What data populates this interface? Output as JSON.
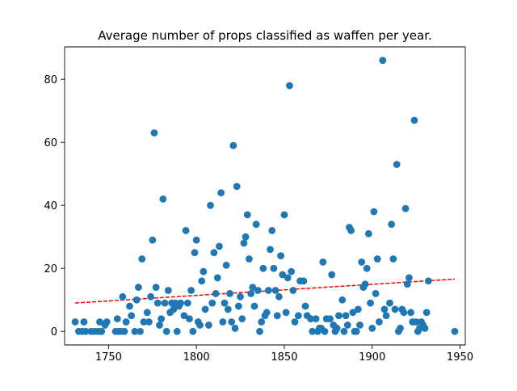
{
  "chart_data": {
    "type": "scatter",
    "title": "Average number of props classified as waffen per year.",
    "xlabel": "",
    "ylabel": "",
    "xlim": [
      1725,
      1953
    ],
    "ylim": [
      -4.3,
      90.3
    ],
    "xticks": [
      1750,
      1800,
      1850,
      1900,
      1950
    ],
    "yticks": [
      0,
      20,
      40,
      60,
      80
    ],
    "grid": false,
    "legend": "none",
    "marker_color": "#1f77b4",
    "trendline_color": "#ff0000",
    "points": [
      [
        1731,
        3
      ],
      [
        1733,
        0
      ],
      [
        1735,
        0
      ],
      [
        1736,
        3
      ],
      [
        1737,
        0
      ],
      [
        1740,
        0
      ],
      [
        1742,
        0
      ],
      [
        1744,
        0
      ],
      [
        1745,
        3
      ],
      [
        1746,
        0
      ],
      [
        1748,
        2
      ],
      [
        1749,
        3
      ],
      [
        1754,
        0
      ],
      [
        1755,
        4
      ],
      [
        1756,
        0
      ],
      [
        1757,
        0
      ],
      [
        1758,
        11
      ],
      [
        1759,
        0
      ],
      [
        1760,
        3
      ],
      [
        1762,
        8
      ],
      [
        1763,
        5
      ],
      [
        1765,
        0
      ],
      [
        1766,
        10
      ],
      [
        1767,
        14
      ],
      [
        1768,
        0
      ],
      [
        1769,
        23
      ],
      [
        1770,
        3
      ],
      [
        1772,
        6
      ],
      [
        1773,
        3
      ],
      [
        1774,
        11
      ],
      [
        1775,
        29
      ],
      [
        1776,
        63
      ],
      [
        1777,
        14
      ],
      [
        1778,
        9
      ],
      [
        1779,
        2
      ],
      [
        1780,
        4
      ],
      [
        1781,
        42
      ],
      [
        1782,
        9
      ],
      [
        1783,
        0
      ],
      [
        1784,
        13
      ],
      [
        1785,
        6
      ],
      [
        1786,
        9
      ],
      [
        1787,
        7
      ],
      [
        1788,
        9
      ],
      [
        1789,
        0
      ],
      [
        1790,
        8
      ],
      [
        1791,
        9
      ],
      [
        1793,
        5
      ],
      [
        1794,
        32
      ],
      [
        1795,
        9
      ],
      [
        1796,
        4
      ],
      [
        1797,
        13
      ],
      [
        1798,
        0
      ],
      [
        1799,
        25
      ],
      [
        1800,
        29
      ],
      [
        1801,
        3
      ],
      [
        1802,
        2
      ],
      [
        1803,
        16
      ],
      [
        1804,
        19
      ],
      [
        1805,
        7
      ],
      [
        1807,
        2
      ],
      [
        1808,
        40
      ],
      [
        1809,
        9
      ],
      [
        1810,
        25
      ],
      [
        1811,
        12
      ],
      [
        1812,
        17
      ],
      [
        1813,
        27
      ],
      [
        1814,
        44
      ],
      [
        1815,
        3
      ],
      [
        1816,
        9
      ],
      [
        1817,
        21
      ],
      [
        1818,
        7
      ],
      [
        1819,
        12
      ],
      [
        1820,
        3
      ],
      [
        1821,
        59
      ],
      [
        1822,
        1
      ],
      [
        1823,
        46
      ],
      [
        1824,
        8
      ],
      [
        1825,
        11
      ],
      [
        1826,
        4
      ],
      [
        1827,
        28
      ],
      [
        1828,
        30
      ],
      [
        1829,
        37
      ],
      [
        1830,
        23
      ],
      [
        1831,
        12
      ],
      [
        1832,
        14
      ],
      [
        1833,
        8
      ],
      [
        1834,
        34
      ],
      [
        1835,
        13
      ],
      [
        1836,
        0
      ],
      [
        1837,
        3
      ],
      [
        1838,
        20
      ],
      [
        1839,
        5
      ],
      [
        1840,
        6
      ],
      [
        1841,
        13
      ],
      [
        1842,
        26
      ],
      [
        1843,
        32
      ],
      [
        1844,
        20
      ],
      [
        1845,
        13
      ],
      [
        1846,
        5
      ],
      [
        1847,
        11
      ],
      [
        1848,
        24
      ],
      [
        1849,
        18
      ],
      [
        1850,
        37
      ],
      [
        1851,
        6
      ],
      [
        1852,
        17
      ],
      [
        1853,
        78
      ],
      [
        1854,
        19
      ],
      [
        1855,
        13
      ],
      [
        1856,
        3
      ],
      [
        1858,
        5
      ],
      [
        1859,
        16
      ],
      [
        1861,
        16
      ],
      [
        1862,
        8
      ],
      [
        1863,
        5
      ],
      [
        1865,
        4
      ],
      [
        1866,
        0
      ],
      [
        1868,
        4
      ],
      [
        1869,
        0
      ],
      [
        1870,
        1
      ],
      [
        1871,
        1
      ],
      [
        1872,
        22
      ],
      [
        1873,
        0
      ],
      [
        1874,
        4
      ],
      [
        1876,
        4
      ],
      [
        1877,
        18
      ],
      [
        1878,
        2
      ],
      [
        1879,
        0
      ],
      [
        1880,
        1
      ],
      [
        1881,
        5
      ],
      [
        1883,
        10
      ],
      [
        1884,
        0
      ],
      [
        1885,
        5
      ],
      [
        1886,
        2
      ],
      [
        1887,
        33
      ],
      [
        1888,
        32
      ],
      [
        1889,
        6
      ],
      [
        1890,
        0
      ],
      [
        1891,
        0
      ],
      [
        1892,
        7
      ],
      [
        1893,
        2
      ],
      [
        1894,
        22
      ],
      [
        1895,
        14
      ],
      [
        1896,
        15
      ],
      [
        1897,
        20
      ],
      [
        1898,
        31
      ],
      [
        1899,
        9
      ],
      [
        1900,
        1
      ],
      [
        1901,
        38
      ],
      [
        1902,
        12
      ],
      [
        1903,
        23
      ],
      [
        1904,
        3
      ],
      [
        1906,
        86
      ],
      [
        1907,
        7
      ],
      [
        1908,
        5
      ],
      [
        1910,
        9
      ],
      [
        1911,
        34
      ],
      [
        1912,
        23
      ],
      [
        1913,
        7
      ],
      [
        1914,
        53
      ],
      [
        1915,
        0
      ],
      [
        1916,
        1
      ],
      [
        1917,
        7
      ],
      [
        1918,
        6
      ],
      [
        1919,
        39
      ],
      [
        1920,
        15
      ],
      [
        1921,
        17
      ],
      [
        1922,
        6
      ],
      [
        1923,
        3
      ],
      [
        1924,
        67
      ],
      [
        1925,
        3
      ],
      [
        1926,
        0
      ],
      [
        1927,
        1
      ],
      [
        1928,
        3
      ],
      [
        1929,
        2
      ],
      [
        1930,
        1
      ],
      [
        1931,
        6
      ],
      [
        1932,
        16
      ],
      [
        1947,
        0
      ]
    ],
    "trendline": {
      "x": [
        1731,
        1947
      ],
      "y": [
        9.0,
        16.6
      ]
    }
  }
}
